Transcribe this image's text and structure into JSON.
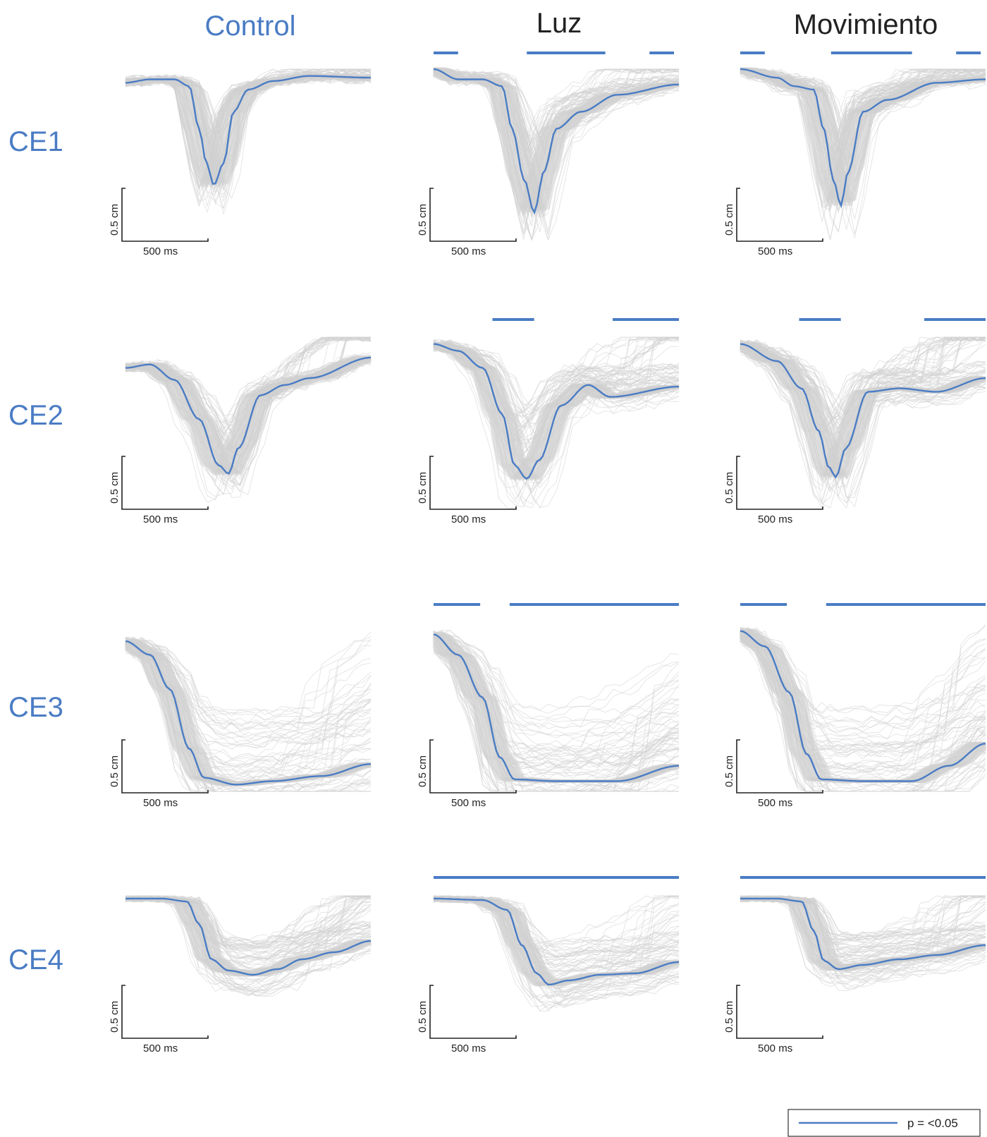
{
  "chart_data": {
    "type": "line",
    "columns": [
      "Control",
      "Luz",
      "Movimiento"
    ],
    "rows": [
      "CE1",
      "CE2",
      "CE3",
      "CE4"
    ],
    "colors": {
      "mean": "#4a7cc4",
      "trials": "#d2d2d2",
      "title_control": "#4a7cc4",
      "title_other": "#222222",
      "row_label": "#4a7cc4"
    },
    "scale_bar": {
      "x_label": "500 ms",
      "y_label": "0.5 cm"
    },
    "legend": {
      "label": "p = <0.05",
      "placement": "bottom-right"
    },
    "note": "",
    "mean_curves": {
      "CE1": {
        "Control": [
          [
            0,
            0.08
          ],
          [
            0.1,
            0.06
          ],
          [
            0.2,
            0.06
          ],
          [
            0.26,
            0.1
          ],
          [
            0.3,
            0.35
          ],
          [
            0.33,
            0.55
          ],
          [
            0.36,
            0.68
          ],
          [
            0.4,
            0.55
          ],
          [
            0.44,
            0.25
          ],
          [
            0.5,
            0.12
          ],
          [
            0.6,
            0.07
          ],
          [
            0.75,
            0.04
          ],
          [
            1,
            0.05
          ]
        ],
        "Luz": [
          [
            0,
            0.0
          ],
          [
            0.1,
            0.06
          ],
          [
            0.2,
            0.06
          ],
          [
            0.28,
            0.1
          ],
          [
            0.32,
            0.35
          ],
          [
            0.37,
            0.65
          ],
          [
            0.41,
            0.84
          ],
          [
            0.45,
            0.6
          ],
          [
            0.5,
            0.35
          ],
          [
            0.6,
            0.25
          ],
          [
            0.75,
            0.15
          ],
          [
            1,
            0.09
          ]
        ],
        "Movimiento": [
          [
            0,
            0.0
          ],
          [
            0.15,
            0.05
          ],
          [
            0.22,
            0.1
          ],
          [
            0.3,
            0.12
          ],
          [
            0.34,
            0.35
          ],
          [
            0.38,
            0.65
          ],
          [
            0.41,
            0.8
          ],
          [
            0.44,
            0.6
          ],
          [
            0.5,
            0.25
          ],
          [
            0.6,
            0.18
          ],
          [
            0.8,
            0.08
          ],
          [
            1,
            0.06
          ]
        ]
      },
      "CE2": {
        "Control": [
          [
            0,
            0.18
          ],
          [
            0.1,
            0.16
          ],
          [
            0.2,
            0.25
          ],
          [
            0.3,
            0.48
          ],
          [
            0.38,
            0.75
          ],
          [
            0.42,
            0.8
          ],
          [
            0.46,
            0.65
          ],
          [
            0.55,
            0.34
          ],
          [
            0.65,
            0.28
          ],
          [
            0.75,
            0.24
          ],
          [
            1,
            0.12
          ]
        ],
        "Luz": [
          [
            0,
            0.04
          ],
          [
            0.1,
            0.08
          ],
          [
            0.2,
            0.18
          ],
          [
            0.28,
            0.45
          ],
          [
            0.33,
            0.75
          ],
          [
            0.38,
            0.83
          ],
          [
            0.43,
            0.72
          ],
          [
            0.52,
            0.4
          ],
          [
            0.63,
            0.28
          ],
          [
            0.72,
            0.35
          ],
          [
            1,
            0.29
          ]
        ],
        "Movimiento": [
          [
            0,
            0.04
          ],
          [
            0.15,
            0.14
          ],
          [
            0.25,
            0.3
          ],
          [
            0.32,
            0.55
          ],
          [
            0.36,
            0.76
          ],
          [
            0.39,
            0.82
          ],
          [
            0.43,
            0.65
          ],
          [
            0.52,
            0.32
          ],
          [
            0.65,
            0.3
          ],
          [
            0.8,
            0.32
          ],
          [
            1,
            0.24
          ]
        ]
      },
      "CE3": {
        "Control": [
          [
            0,
            0.12
          ],
          [
            0.1,
            0.2
          ],
          [
            0.18,
            0.4
          ],
          [
            0.26,
            0.75
          ],
          [
            0.32,
            0.92
          ],
          [
            0.45,
            0.96
          ],
          [
            0.6,
            0.94
          ],
          [
            0.8,
            0.91
          ],
          [
            1,
            0.84
          ]
        ],
        "Luz": [
          [
            0,
            0.08
          ],
          [
            0.1,
            0.2
          ],
          [
            0.2,
            0.45
          ],
          [
            0.27,
            0.8
          ],
          [
            0.33,
            0.93
          ],
          [
            0.5,
            0.94
          ],
          [
            0.75,
            0.94
          ],
          [
            1,
            0.85
          ]
        ],
        "Movimiento": [
          [
            0,
            0.06
          ],
          [
            0.1,
            0.15
          ],
          [
            0.2,
            0.42
          ],
          [
            0.27,
            0.78
          ],
          [
            0.33,
            0.93
          ],
          [
            0.5,
            0.94
          ],
          [
            0.7,
            0.94
          ],
          [
            0.85,
            0.85
          ],
          [
            1,
            0.72
          ]
        ]
      },
      "CE4": {
        "Control": [
          [
            0,
            0.02
          ],
          [
            0.15,
            0.02
          ],
          [
            0.25,
            0.04
          ],
          [
            0.3,
            0.2
          ],
          [
            0.35,
            0.45
          ],
          [
            0.42,
            0.53
          ],
          [
            0.52,
            0.56
          ],
          [
            0.62,
            0.52
          ],
          [
            0.72,
            0.45
          ],
          [
            0.85,
            0.4
          ],
          [
            1,
            0.32
          ]
        ],
        "Luz": [
          [
            0,
            0.02
          ],
          [
            0.2,
            0.03
          ],
          [
            0.3,
            0.1
          ],
          [
            0.36,
            0.35
          ],
          [
            0.42,
            0.55
          ],
          [
            0.47,
            0.63
          ],
          [
            0.55,
            0.6
          ],
          [
            0.68,
            0.56
          ],
          [
            0.82,
            0.55
          ],
          [
            1,
            0.47
          ]
        ],
        "Movimiento": [
          [
            0,
            0.02
          ],
          [
            0.15,
            0.02
          ],
          [
            0.25,
            0.04
          ],
          [
            0.3,
            0.25
          ],
          [
            0.34,
            0.46
          ],
          [
            0.4,
            0.52
          ],
          [
            0.5,
            0.49
          ],
          [
            0.65,
            0.45
          ],
          [
            0.8,
            0.42
          ],
          [
            1,
            0.35
          ]
        ]
      }
    },
    "significance_bars": {
      "CE1": {
        "Control": [],
        "Luz": [
          [
            0.0,
            0.1
          ],
          [
            0.38,
            0.7
          ],
          [
            0.88,
            0.98
          ]
        ],
        "Movimiento": [
          [
            0.0,
            0.1
          ],
          [
            0.37,
            0.7
          ],
          [
            0.88,
            0.98
          ]
        ]
      },
      "CE2": {
        "Control": [],
        "Luz": [
          [
            0.24,
            0.41
          ],
          [
            0.73,
            1.0
          ]
        ],
        "Movimiento": [
          [
            0.24,
            0.41
          ],
          [
            0.75,
            1.0
          ]
        ]
      },
      "CE3": {
        "Control": [],
        "Luz": [
          [
            0.0,
            0.19
          ],
          [
            0.31,
            1.0
          ]
        ],
        "Movimiento": [
          [
            0.0,
            0.19
          ],
          [
            0.35,
            1.0
          ]
        ]
      },
      "CE4": {
        "Control": [],
        "Luz": [
          [
            0.0,
            1.0
          ]
        ],
        "Movimiento": [
          [
            0.0,
            1.0
          ]
        ]
      }
    }
  }
}
